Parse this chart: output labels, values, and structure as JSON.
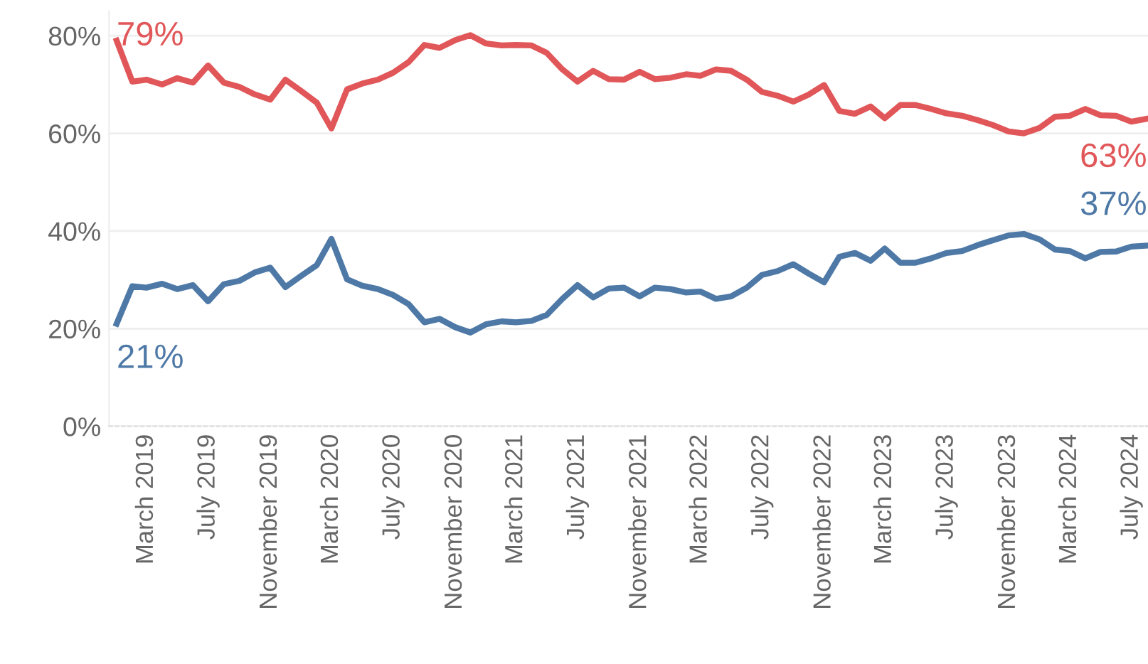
{
  "chart_data": {
    "type": "line",
    "x": [
      "2019-01",
      "2019-02",
      "2019-03",
      "2019-04",
      "2019-05",
      "2019-06",
      "2019-07",
      "2019-08",
      "2019-09",
      "2019-10",
      "2019-11",
      "2019-12",
      "2020-01",
      "2020-02",
      "2020-03",
      "2020-04",
      "2020-05",
      "2020-06",
      "2020-07",
      "2020-08",
      "2020-09",
      "2020-10",
      "2020-11",
      "2020-12",
      "2021-01",
      "2021-02",
      "2021-03",
      "2021-04",
      "2021-05",
      "2021-06",
      "2021-07",
      "2021-08",
      "2021-09",
      "2021-10",
      "2021-11",
      "2021-12",
      "2022-01",
      "2022-02",
      "2022-03",
      "2022-04",
      "2022-05",
      "2022-06",
      "2022-07",
      "2022-08",
      "2022-09",
      "2022-10",
      "2022-11",
      "2022-12",
      "2023-01",
      "2023-02",
      "2023-03",
      "2023-04",
      "2023-05",
      "2023-06",
      "2023-07",
      "2023-08",
      "2023-09",
      "2023-10",
      "2023-11",
      "2023-12",
      "2024-01",
      "2024-02",
      "2024-03",
      "2024-04",
      "2024-05",
      "2024-06",
      "2024-07",
      "2024-08"
    ],
    "series": [
      {
        "color": "#e15759",
        "values": [
          79,
          70.6,
          71,
          70,
          71.3,
          70.4,
          73.9,
          70.4,
          69.5,
          68,
          66.9,
          71,
          68.7,
          66.3,
          61,
          69,
          70.2,
          71,
          72.4,
          74.6,
          78.1,
          77.5,
          79.1,
          80.1,
          78.4,
          78,
          78.1,
          78,
          76.5,
          73.1,
          70.6,
          72.8,
          71.1,
          71,
          72.6,
          71.1,
          71.4,
          72.1,
          71.8,
          73.1,
          72.8,
          71,
          68.5,
          67.7,
          66.5,
          67.9,
          69.9,
          64.6,
          64,
          65.5,
          63.1,
          65.8,
          65.8,
          65,
          64.1,
          63.6,
          62.7,
          61.7,
          60.4,
          60,
          61.1,
          63.4,
          63.6,
          65,
          63.7,
          63.6,
          62.4,
          63
        ]
      },
      {
        "color": "#4e79a7",
        "values": [
          21,
          28.7,
          28.4,
          29.2,
          28.1,
          28.9,
          25.6,
          29.1,
          29.8,
          31.5,
          32.5,
          28.5,
          30.8,
          33,
          38.4,
          30.1,
          28.8,
          28.1,
          26.9,
          25,
          21.3,
          22,
          20.3,
          19.2,
          20.9,
          21.5,
          21.3,
          21.6,
          22.8,
          26.1,
          28.9,
          26.4,
          28.2,
          28.4,
          26.6,
          28.4,
          28.1,
          27.4,
          27.6,
          26.1,
          26.6,
          28.4,
          31,
          31.8,
          33.2,
          31.3,
          29.5,
          34.7,
          35.5,
          33.9,
          36.4,
          33.5,
          33.5,
          34.4,
          35.5,
          35.9,
          37.1,
          38.1,
          39.1,
          39.4,
          38.3,
          36.2,
          35.9,
          34.4,
          35.7,
          35.8,
          36.8,
          37
        ]
      }
    ],
    "annotations": [
      {
        "text": "79%",
        "x": "2019-01",
        "y": 79
      },
      {
        "text": "21%",
        "x": "2019-01",
        "y": 21
      },
      {
        "text": "63%",
        "x": "2024-08",
        "y": 63
      },
      {
        "text": "37%",
        "x": "2024-08",
        "y": 37
      }
    ],
    "xlim": [
      "2018-12-17",
      "2024-08-03"
    ],
    "xticks": [
      {
        "value": "2019-03",
        "label": "March 2019"
      },
      {
        "value": "2019-07",
        "label": "July 2019"
      },
      {
        "value": "2019-11",
        "label": "November 2019"
      },
      {
        "value": "2020-03",
        "label": "March 2020"
      },
      {
        "value": "2020-07",
        "label": "July 2020"
      },
      {
        "value": "2020-11",
        "label": "November 2020"
      },
      {
        "value": "2021-03",
        "label": "March 2021"
      },
      {
        "value": "2021-07",
        "label": "July 2021"
      },
      {
        "value": "2021-11",
        "label": "November 2021"
      },
      {
        "value": "2022-03",
        "label": "March 2022"
      },
      {
        "value": "2022-07",
        "label": "July 2022"
      },
      {
        "value": "2022-11",
        "label": "November 2022"
      },
      {
        "value": "2023-03",
        "label": "March 2023"
      },
      {
        "value": "2023-07",
        "label": "July 2023"
      },
      {
        "value": "2023-11",
        "label": "November 2023"
      },
      {
        "value": "2024-03",
        "label": "March 2024"
      },
      {
        "value": "2024-07",
        "label": "July 2024"
      }
    ],
    "ylim": [
      0,
      85
    ],
    "yticks": [
      {
        "value": 0,
        "label": "0%"
      },
      {
        "value": 20,
        "label": "20%"
      },
      {
        "value": 40,
        "label": "40%"
      },
      {
        "value": 60,
        "label": "60%"
      },
      {
        "value": 80,
        "label": "80%"
      }
    ],
    "grid": "y",
    "marker": "none",
    "line_style": "solid"
  }
}
